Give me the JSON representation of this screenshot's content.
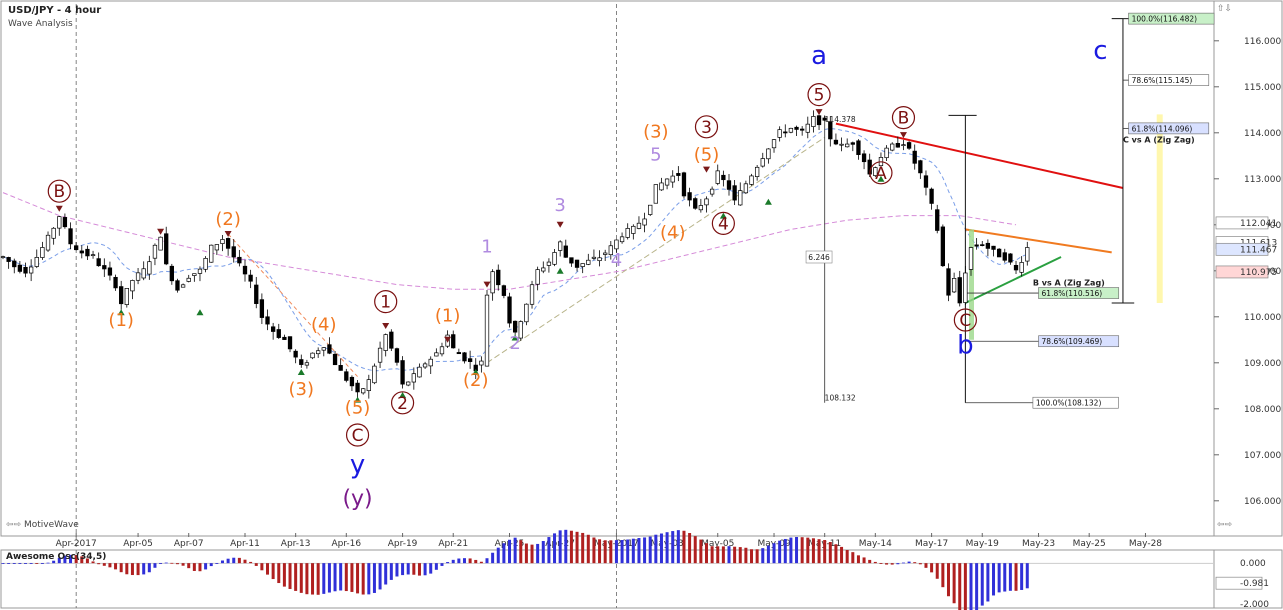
{
  "header": {
    "title": "USD/JPY - 4 hour",
    "subtitle": "Wave Analysis",
    "watermark": "MotiveWave"
  },
  "chart_data": {
    "type": "candlestick",
    "symbol": "USD/JPY",
    "timeframe": "4 hour",
    "price_axis": {
      "range": [
        105.3,
        116.8
      ],
      "ticks": [
        "116.000",
        "115.000",
        "114.000",
        "113.000",
        "112.000",
        "111.000",
        "110.000",
        "109.000",
        "108.000",
        "107.000",
        "106.000"
      ],
      "tags": [
        {
          "label": "112.041",
          "price": 112.041,
          "color": "#ffffff"
        },
        {
          "label": "111.613",
          "price": 111.613,
          "color": "#ffffff"
        },
        {
          "label": "111.467",
          "price": 111.467,
          "color": "#dde6ff"
        },
        {
          "label": "110.975",
          "price": 110.975,
          "color": "#ffd6d6"
        }
      ]
    },
    "date_axis": {
      "labels": [
        {
          "t": "Apr-2017",
          "i": 13
        },
        {
          "t": "Apr-05",
          "i": 24
        },
        {
          "t": "Apr-07",
          "i": 33
        },
        {
          "t": "Apr-11",
          "i": 43
        },
        {
          "t": "Apr-13",
          "i": 52
        },
        {
          "t": "Apr-16",
          "i": 61
        },
        {
          "t": "Apr-19",
          "i": 71
        },
        {
          "t": "Apr-21",
          "i": 80
        },
        {
          "t": "Apr-25",
          "i": 90
        },
        {
          "t": "Apr-27",
          "i": 99
        },
        {
          "t": "May-2017",
          "i": 109
        },
        {
          "t": "May-03",
          "i": 118
        },
        {
          "t": "May-05",
          "i": 127
        },
        {
          "t": "May-09",
          "i": 137
        },
        {
          "t": "May-11",
          "i": 146
        },
        {
          "t": "May-14",
          "i": 155
        },
        {
          "t": "May-17",
          "i": 165
        },
        {
          "t": "May-19",
          "i": 174
        },
        {
          "t": "May-23",
          "i": 184
        },
        {
          "t": "May-25",
          "i": 193
        },
        {
          "t": "May-28",
          "i": 203
        }
      ],
      "dividers": [
        13,
        109
      ]
    },
    "price_path": [
      [
        0,
        111.3
      ],
      [
        2,
        111.1
      ],
      [
        4,
        111.0
      ],
      [
        6,
        111.3
      ],
      [
        8,
        111.7
      ],
      [
        10,
        112.2
      ],
      [
        12,
        111.6
      ],
      [
        14,
        111.4
      ],
      [
        16,
        111.3
      ],
      [
        18,
        111.0
      ],
      [
        20,
        110.7
      ],
      [
        21,
        110.3
      ],
      [
        23,
        110.8
      ],
      [
        25,
        111.0
      ],
      [
        27,
        111.5
      ],
      [
        28,
        111.8
      ],
      [
        29,
        111.1
      ],
      [
        31,
        110.6
      ],
      [
        33,
        110.9
      ],
      [
        35,
        111.0
      ],
      [
        37,
        111.5
      ],
      [
        39,
        111.7
      ],
      [
        40,
        111.5
      ],
      [
        42,
        111.1
      ],
      [
        44,
        110.7
      ],
      [
        46,
        110.0
      ],
      [
        48,
        109.7
      ],
      [
        50,
        109.5
      ],
      [
        52,
        109.1
      ],
      [
        53,
        108.9
      ],
      [
        55,
        109.2
      ],
      [
        57,
        109.4
      ],
      [
        59,
        109.0
      ],
      [
        60,
        108.8
      ],
      [
        62,
        108.5
      ],
      [
        63,
        108.3
      ],
      [
        65,
        108.6
      ],
      [
        67,
        109.3
      ],
      [
        68,
        109.6
      ],
      [
        70,
        109.0
      ],
      [
        71,
        108.5
      ],
      [
        73,
        108.7
      ],
      [
        75,
        109.0
      ],
      [
        77,
        109.2
      ],
      [
        79,
        109.6
      ],
      [
        80,
        109.3
      ],
      [
        82,
        109.1
      ],
      [
        84,
        108.9
      ],
      [
        85,
        109.0
      ],
      [
        86,
        110.5
      ],
      [
        87,
        111.0
      ],
      [
        89,
        110.5
      ],
      [
        90,
        109.9
      ],
      [
        91,
        109.6
      ],
      [
        93,
        110.3
      ],
      [
        95,
        111.0
      ],
      [
        97,
        111.2
      ],
      [
        99,
        111.6
      ],
      [
        100,
        111.3
      ],
      [
        102,
        111.1
      ],
      [
        104,
        111.2
      ],
      [
        106,
        111.3
      ],
      [
        108,
        111.5
      ],
      [
        110,
        111.8
      ],
      [
        112,
        111.9
      ],
      [
        114,
        112.2
      ],
      [
        116,
        112.8
      ],
      [
        118,
        113.0
      ],
      [
        120,
        113.1
      ],
      [
        121,
        112.7
      ],
      [
        123,
        112.3
      ],
      [
        125,
        112.6
      ],
      [
        127,
        113.1
      ],
      [
        129,
        112.8
      ],
      [
        130,
        112.5
      ],
      [
        132,
        112.9
      ],
      [
        134,
        113.3
      ],
      [
        136,
        113.7
      ],
      [
        138,
        114.0
      ],
      [
        140,
        114.1
      ],
      [
        142,
        114.0
      ],
      [
        144,
        114.3
      ],
      [
        146,
        114.2
      ],
      [
        147,
        113.9
      ],
      [
        149,
        113.7
      ],
      [
        151,
        113.8
      ],
      [
        153,
        113.4
      ],
      [
        154,
        113.1
      ],
      [
        156,
        113.5
      ],
      [
        158,
        113.7
      ],
      [
        160,
        113.8
      ],
      [
        161,
        113.6
      ],
      [
        163,
        113.1
      ],
      [
        165,
        112.4
      ],
      [
        166,
        111.9
      ],
      [
        167,
        111.1
      ],
      [
        168,
        110.5
      ],
      [
        169,
        110.8
      ],
      [
        170,
        110.3
      ],
      [
        171,
        111.0
      ],
      [
        172,
        111.5
      ],
      [
        174,
        111.6
      ],
      [
        176,
        111.4
      ],
      [
        178,
        111.3
      ],
      [
        180,
        111.0
      ],
      [
        182,
        111.5
      ]
    ],
    "ma_long": [
      [
        0,
        112.7
      ],
      [
        10,
        112.2
      ],
      [
        20,
        111.9
      ],
      [
        30,
        111.6
      ],
      [
        40,
        111.3
      ],
      [
        50,
        111.1
      ],
      [
        60,
        110.9
      ],
      [
        70,
        110.7
      ],
      [
        80,
        110.6
      ],
      [
        90,
        110.6
      ],
      [
        100,
        110.8
      ],
      [
        110,
        111.0
      ],
      [
        120,
        111.3
      ],
      [
        130,
        111.6
      ],
      [
        140,
        111.9
      ],
      [
        150,
        112.1
      ],
      [
        160,
        112.2
      ],
      [
        170,
        112.2
      ],
      [
        180,
        112.0
      ]
    ],
    "ma_short_series": "blue dashed",
    "wave_labels": [
      {
        "text": "B",
        "i": 10,
        "p": 112.6,
        "style": "circle-darkred"
      },
      {
        "text": "(2)",
        "i": 40,
        "p": 112.0,
        "style": "orange"
      },
      {
        "text": "(1)",
        "i": 21,
        "p": 109.8,
        "style": "orange"
      },
      {
        "text": "(4)",
        "i": 57,
        "p": 109.7,
        "style": "orange"
      },
      {
        "text": "(3)",
        "i": 53,
        "p": 108.3,
        "style": "orange"
      },
      {
        "text": "1",
        "i": 68,
        "p": 110.2,
        "style": "circle-darkred"
      },
      {
        "text": "(5)",
        "i": 63,
        "p": 107.9,
        "style": "orange"
      },
      {
        "text": "2",
        "i": 71,
        "p": 108.0,
        "style": "circle-darkred"
      },
      {
        "text": "C",
        "i": 63,
        "p": 107.3,
        "style": "circle-darkred"
      },
      {
        "text": "y",
        "i": 63,
        "p": 106.6,
        "style": "blue"
      },
      {
        "text": "(y)",
        "i": 63,
        "p": 105.9,
        "style": "purple"
      },
      {
        "text": "(1)",
        "i": 79,
        "p": 109.9,
        "style": "orange"
      },
      {
        "text": "(2)",
        "i": 84,
        "p": 108.5,
        "style": "orange"
      },
      {
        "text": "1",
        "i": 86,
        "p": 111.4,
        "style": "lilac"
      },
      {
        "text": "2",
        "i": 91,
        "p": 109.3,
        "style": "lilac"
      },
      {
        "text": "3",
        "i": 99,
        "p": 112.3,
        "style": "lilac"
      },
      {
        "text": "4",
        "i": 109,
        "p": 111.1,
        "style": "lilac"
      },
      {
        "text": "5",
        "i": 116,
        "p": 113.4,
        "style": "lilac"
      },
      {
        "text": "(3)",
        "i": 116,
        "p": 113.9,
        "style": "orange"
      },
      {
        "text": "(4)",
        "i": 119,
        "p": 111.7,
        "style": "orange"
      },
      {
        "text": "3",
        "i": 125,
        "p": 114.0,
        "style": "circle-darkred"
      },
      {
        "text": "(5)",
        "i": 125,
        "p": 113.4,
        "style": "orange"
      },
      {
        "text": "4",
        "i": 128,
        "p": 111.9,
        "style": "circle-darkred"
      },
      {
        "text": "5",
        "i": 145,
        "p": 114.7,
        "style": "circle-darkred"
      },
      {
        "text": "a",
        "i": 145,
        "p": 115.5,
        "style": "blue"
      },
      {
        "text": "B",
        "i": 160,
        "p": 114.2,
        "style": "circle-darkred"
      },
      {
        "text": "A",
        "i": 156,
        "p": 113.0,
        "style": "circle-darkred"
      },
      {
        "text": "C",
        "i": 171,
        "p": 109.8,
        "style": "circle-darkred"
      },
      {
        "text": "b",
        "i": 171,
        "p": 109.2,
        "style": "blue"
      },
      {
        "text": "c",
        "i": 195,
        "p": 115.6,
        "style": "blue"
      }
    ],
    "annotations": [
      {
        "text": "114.378",
        "i": 146,
        "p": 114.3
      },
      {
        "text": "6.246",
        "i": 145,
        "p": 111.3
      },
      {
        "text": "108.132",
        "i": 146,
        "p": 108.25
      },
      {
        "text": "B vs A (Zig Zag)",
        "i": 183,
        "p": 110.75
      },
      {
        "text": "C vs A (Zig Zag)",
        "i": 199,
        "p": 113.85
      }
    ],
    "fib_tags": [
      {
        "text": "100.0%(116.482)",
        "i": 200,
        "p": 116.482,
        "color": "#c8f0c8"
      },
      {
        "text": "78.6%(115.145)",
        "i": 200,
        "p": 115.145,
        "color": "#ffffff"
      },
      {
        "text": "61.8%(114.096)",
        "i": 200,
        "p": 114.096,
        "color": "#d8e0ff"
      },
      {
        "text": "61.8%(110.516)",
        "i": 184,
        "p": 110.516,
        "color": "#c8f0c8"
      },
      {
        "text": "78.6%(109.469)",
        "i": 184,
        "p": 109.469,
        "color": "#d8e0ff"
      },
      {
        "text": "100.0%(108.132)",
        "i": 183,
        "p": 108.132,
        "color": "#ffffff"
      }
    ],
    "oscillator": {
      "name": "Awesome Osc(34,5)",
      "ticks": [
        "0.000",
        "-0.981",
        "-2.000"
      ],
      "range": [
        -2.1,
        0.5
      ]
    }
  }
}
